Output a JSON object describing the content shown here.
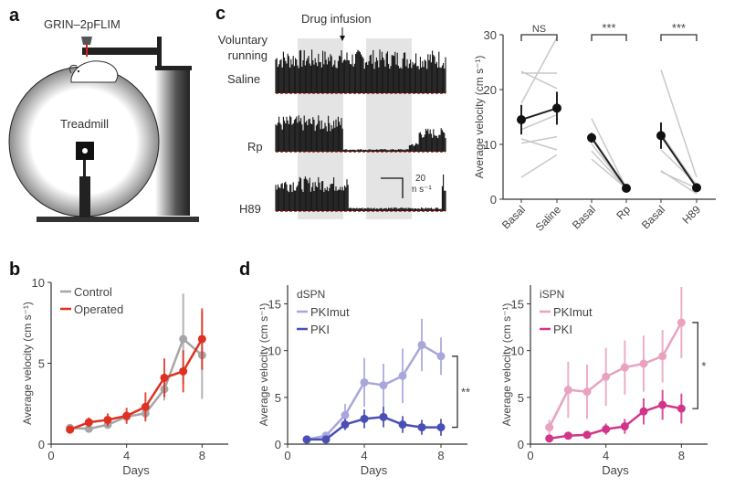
{
  "panels": {
    "a": {
      "letter": "a",
      "title": "GRIN–2pFLIM",
      "treadmill_label": "Treadmill"
    },
    "b": {
      "letter": "b"
    },
    "c": {
      "letter": "c",
      "infusion_label": "Drug infusion",
      "row_header": [
        "Voluntary",
        "running"
      ],
      "traces": [
        {
          "label": "Saline"
        },
        {
          "label": "Rp"
        },
        {
          "label": "H89"
        }
      ],
      "scale_time": "20 min",
      "scale_velocity": "20",
      "scale_velocity_unit": "cm s⁻¹"
    },
    "d": {
      "letter": "d"
    }
  },
  "colors": {
    "control": "#a6a6a6",
    "operated": "#e03021",
    "dspn_mut": "#a9a6dc",
    "dspn_pki": "#4a4fb5",
    "ispn_mut": "#e9a2bf",
    "ispn_pki": "#d1358a",
    "grey_line": "#c8c8c8",
    "black": "#111111",
    "shade": "#e4e4e4",
    "baseline": "#e04040"
  },
  "chart_data": [
    {
      "id": "c-right",
      "type": "scatter",
      "title": "",
      "xlabel": "",
      "ylabel": "Average velocity (cm s⁻¹)",
      "ylim": [
        0,
        30
      ],
      "yticks": [
        0,
        10,
        20,
        30
      ],
      "categories": [
        "Basal",
        "Saline",
        "Basal",
        "Rp",
        "Basal",
        "H89"
      ],
      "groups": [
        {
          "pair": [
            "Basal",
            "Saline"
          ],
          "significance": "NS",
          "mean": [
            14.5,
            16.6
          ],
          "err": [
            2.7,
            3.0
          ],
          "individuals": [
            [
              17.5,
              29.5
            ],
            [
              23.3,
              20.2
            ],
            [
              23.0,
              23.0
            ],
            [
              12.7,
              15.4
            ],
            [
              11.0,
              9.0
            ],
            [
              10.2,
              11.4
            ],
            [
              4.0,
              8.1
            ]
          ]
        },
        {
          "pair": [
            "Basal",
            "Rp"
          ],
          "significance": "***",
          "mean": [
            11.2,
            2.0
          ],
          "err": [
            0.9,
            0.3
          ],
          "individuals": [
            [
              14.7,
              2.0
            ],
            [
              11.5,
              2.0
            ],
            [
              10.1,
              2.0
            ],
            [
              8.8,
              2.0
            ],
            [
              7.3,
              2.0
            ]
          ]
        },
        {
          "pair": [
            "Basal",
            "H89"
          ],
          "significance": "***",
          "mean": [
            11.6,
            2.1
          ],
          "err": [
            2.4,
            0.4
          ],
          "individuals": [
            [
              23.6,
              4.0
            ],
            [
              9.0,
              2.8
            ],
            [
              5.2,
              1.0
            ],
            [
              5.0,
              2.0
            ],
            [
              12.0,
              2.5
            ]
          ]
        }
      ]
    },
    {
      "id": "b",
      "type": "line",
      "title": "",
      "xlabel": "Days",
      "ylabel": "Average velocity (cm s⁻¹)",
      "xlim": [
        0,
        9
      ],
      "ylim": [
        0,
        10
      ],
      "xticks": [
        0,
        4,
        8
      ],
      "yticks": [
        0,
        5,
        10
      ],
      "legend": "top-left",
      "x": [
        1,
        2,
        3,
        4,
        5,
        6,
        7,
        8
      ],
      "series": [
        {
          "name": "Control",
          "color_key": "control",
          "values": [
            1.0,
            0.95,
            1.2,
            1.7,
            1.9,
            3.4,
            6.5,
            5.5
          ],
          "err": [
            0.2,
            0.2,
            0.25,
            0.3,
            0.35,
            0.7,
            2.8,
            2.7
          ]
        },
        {
          "name": "Operated",
          "color_key": "operated",
          "values": [
            0.9,
            1.35,
            1.5,
            1.75,
            2.3,
            4.1,
            4.5,
            6.5
          ],
          "err": [
            0.2,
            0.3,
            0.4,
            0.5,
            0.9,
            1.2,
            1.3,
            1.9
          ]
        }
      ]
    },
    {
      "id": "d-dspn",
      "type": "line",
      "title": "dSPN",
      "xlabel": "Days",
      "ylabel": "Average velocity (cm s⁻¹)",
      "xlim": [
        0,
        9
      ],
      "ylim": [
        0,
        17
      ],
      "xticks": [
        0,
        4,
        8
      ],
      "yticks": [
        0,
        5,
        10,
        15
      ],
      "legend": "top-left",
      "significance": "**",
      "x": [
        1,
        2,
        3,
        4,
        5,
        6,
        7,
        8
      ],
      "series": [
        {
          "name": "PKImut",
          "color_key": "dspn_mut",
          "values": [
            0.5,
            0.9,
            3.1,
            6.6,
            6.3,
            7.3,
            10.6,
            9.4
          ],
          "err": [
            0.2,
            0.3,
            1.2,
            2.6,
            2.3,
            2.9,
            2.8,
            2.0
          ]
        },
        {
          "name": "PKI",
          "color_key": "dspn_pki",
          "values": [
            0.5,
            0.5,
            2.1,
            2.7,
            2.9,
            2.1,
            1.8,
            1.8
          ],
          "err": [
            0.2,
            0.2,
            0.6,
            1.0,
            1.1,
            0.9,
            0.8,
            0.9
          ]
        }
      ]
    },
    {
      "id": "d-ispn",
      "type": "line",
      "title": "iSPN",
      "xlabel": "Days",
      "ylabel": "Average velocity (cm s⁻¹)",
      "xlim": [
        0,
        9
      ],
      "ylim": [
        0,
        17
      ],
      "xticks": [
        0,
        4,
        8
      ],
      "yticks": [
        0,
        5,
        10,
        15
      ],
      "legend": "top-left",
      "significance": "*",
      "x": [
        1,
        2,
        3,
        4,
        5,
        6,
        7,
        8
      ],
      "series": [
        {
          "name": "PKImut",
          "color_key": "ispn_mut",
          "values": [
            1.8,
            5.8,
            5.6,
            7.2,
            8.2,
            8.6,
            9.4,
            13.0
          ],
          "err": [
            0.8,
            3.0,
            2.9,
            3.1,
            2.9,
            3.0,
            2.8,
            3.8
          ]
        },
        {
          "name": "PKI",
          "color_key": "ispn_pki",
          "values": [
            0.6,
            0.9,
            1.0,
            1.6,
            1.9,
            3.5,
            4.2,
            3.8
          ],
          "err": [
            0.2,
            0.3,
            0.4,
            0.6,
            0.8,
            1.4,
            1.6,
            1.6
          ]
        }
      ]
    }
  ]
}
